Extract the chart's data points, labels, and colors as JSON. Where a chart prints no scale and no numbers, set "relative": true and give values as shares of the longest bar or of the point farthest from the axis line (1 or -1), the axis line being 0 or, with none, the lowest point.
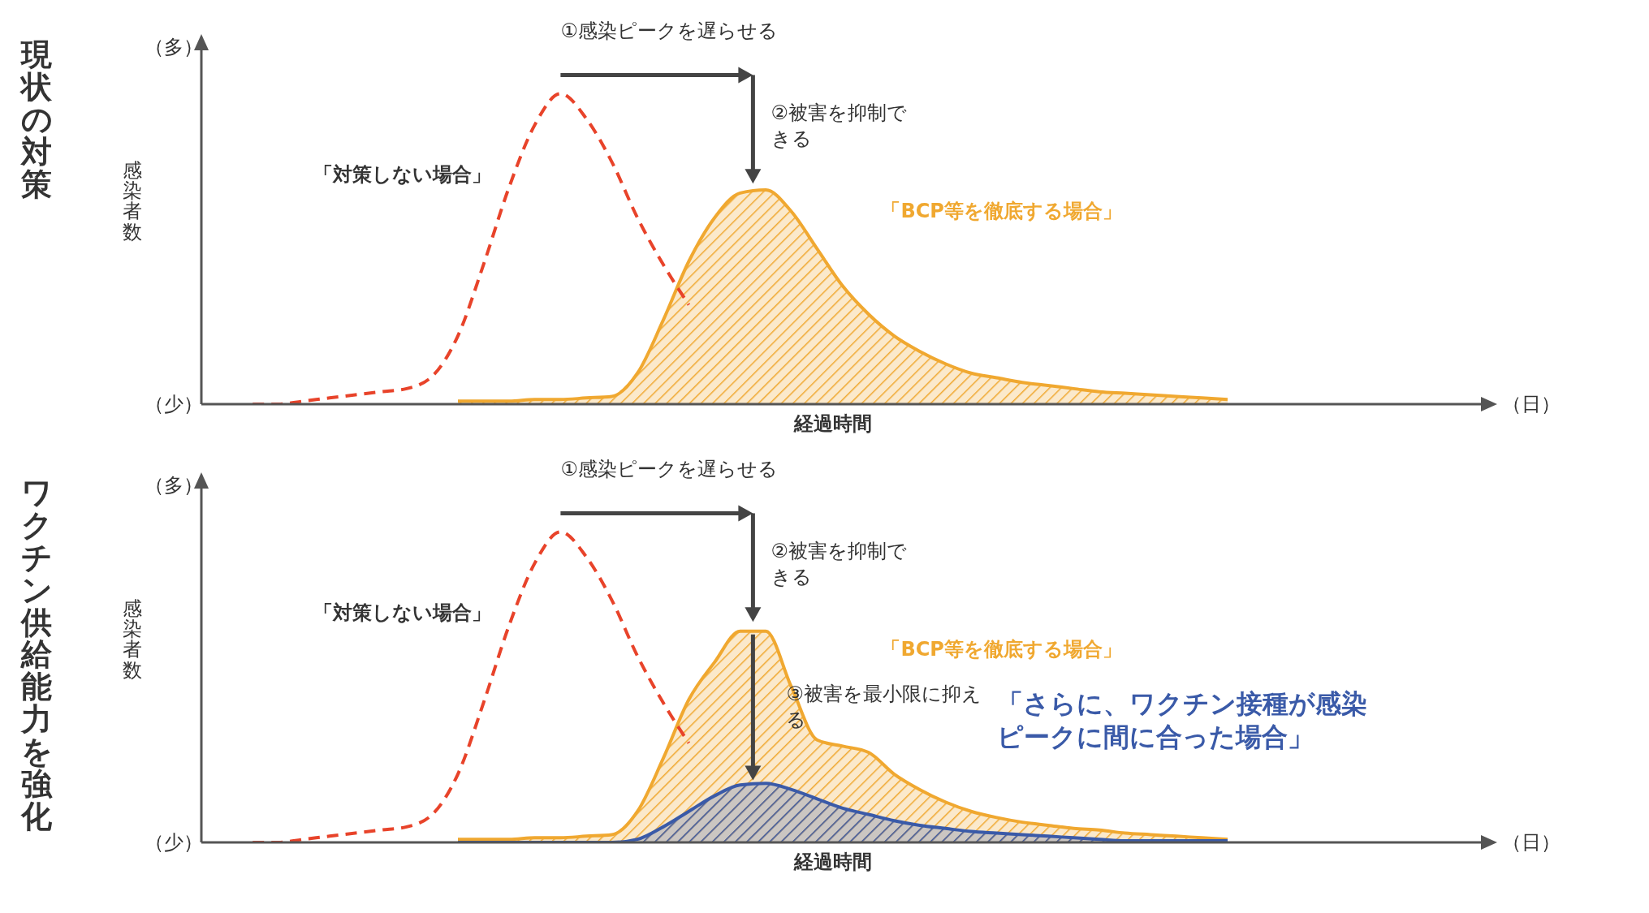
{
  "chart_data": [
    {
      "type": "area",
      "title": "現状の対策",
      "ylabel": "感染者数",
      "xlabel": "経過時間",
      "relative": true,
      "legend": false,
      "categories": [
        null,
        null,
        null,
        null,
        null,
        null,
        null,
        null,
        null,
        null,
        null,
        null,
        null,
        null,
        null,
        null,
        null,
        null,
        null,
        null,
        null,
        null,
        null,
        null,
        null,
        null,
        null,
        null,
        null,
        null,
        null,
        null,
        null,
        null,
        null,
        null,
        null,
        null,
        null,
        null,
        null,
        null,
        null,
        null,
        null,
        null,
        null,
        null,
        null,
        null,
        null
      ],
      "annotations": [
        "（多）",
        "（少）",
        "（日）",
        "①感染ピークを遅らせる",
        "②被害を抑制できる"
      ],
      "series": [
        {
          "name": "「対策しない場合」",
          "type": "line",
          "line_style": "dashed",
          "color": "#e8432a",
          "values": [
            null,
            null,
            0,
            0,
            0.01,
            0.02,
            0.03,
            0.04,
            0.05,
            0.09,
            0.22,
            0.45,
            0.7,
            0.9,
            1.0,
            0.92,
            0.78,
            0.6,
            0.45,
            0.32,
            null,
            null,
            null,
            null,
            null,
            null,
            null,
            null,
            null,
            null,
            null,
            null,
            null,
            null,
            null,
            null,
            null,
            null,
            null,
            null,
            null,
            null,
            null,
            null,
            null,
            null,
            null,
            null,
            null,
            null,
            null
          ]
        },
        {
          "name": "「BCP等を徹底する場合」",
          "color": "#f0a830",
          "values": [
            null,
            null,
            null,
            null,
            null,
            null,
            null,
            null,
            null,
            null,
            0.01,
            0.01,
            0.01,
            0.015,
            0.015,
            0.02,
            0.025,
            0.1,
            0.27,
            0.46,
            0.6,
            0.68,
            0.69,
            0.62,
            0.5,
            0.38,
            0.29,
            0.22,
            0.17,
            0.13,
            0.1,
            0.085,
            0.07,
            0.06,
            0.05,
            0.04,
            0.035,
            0.03,
            0.025,
            0.02,
            0.015,
            null,
            null,
            null,
            null,
            null,
            null,
            null,
            null,
            null,
            null
          ]
        }
      ]
    },
    {
      "type": "area",
      "title": "ワクチン供給能力を強化",
      "ylabel": "感染者数",
      "xlabel": "経過時間",
      "relative": true,
      "legend": false,
      "categories": [
        null,
        null,
        null,
        null,
        null,
        null,
        null,
        null,
        null,
        null,
        null,
        null,
        null,
        null,
        null,
        null,
        null,
        null,
        null,
        null,
        null,
        null,
        null,
        null,
        null,
        null,
        null,
        null,
        null,
        null,
        null,
        null,
        null,
        null,
        null,
        null,
        null,
        null,
        null,
        null,
        null,
        null,
        null,
        null,
        null,
        null,
        null,
        null,
        null,
        null,
        null
      ],
      "annotations": [
        "（多）",
        "（少）",
        "（日）",
        "①感染ピークを遅らせる",
        "②被害を抑制できる",
        "③被害を最小限に抑える"
      ],
      "series": [
        {
          "name": "「対策しない場合」",
          "type": "line",
          "line_style": "dashed",
          "color": "#e8432a",
          "values": [
            null,
            null,
            0,
            0,
            0.01,
            0.02,
            0.03,
            0.04,
            0.05,
            0.09,
            0.22,
            0.45,
            0.7,
            0.9,
            1.0,
            0.92,
            0.78,
            0.6,
            0.45,
            0.32,
            null,
            null,
            null,
            null,
            null,
            null,
            null,
            null,
            null,
            null,
            null,
            null,
            null,
            null,
            null,
            null,
            null,
            null,
            null,
            null,
            null,
            null,
            null,
            null,
            null,
            null,
            null,
            null,
            null,
            null,
            null
          ]
        },
        {
          "name": "「BCP等を徹底する場合」",
          "color": "#f0a830",
          "values": [
            null,
            null,
            null,
            null,
            null,
            null,
            null,
            null,
            null,
            null,
            0.01,
            0.01,
            0.01,
            0.015,
            0.015,
            0.02,
            0.025,
            0.1,
            0.27,
            0.46,
            0.58,
            0.68,
            0.68,
            0.5,
            0.33,
            0.31,
            0.29,
            0.22,
            0.17,
            0.13,
            0.1,
            0.08,
            0.065,
            0.055,
            0.045,
            0.04,
            0.03,
            0.025,
            0.02,
            0.015,
            0.01,
            null,
            null,
            null,
            null,
            null,
            null,
            null,
            null,
            null,
            null
          ]
        },
        {
          "name": "「さらに、ワクチン接種が感染ピークに間に合った場合」",
          "color": "#3a5aa8",
          "values": [
            null,
            null,
            null,
            null,
            null,
            null,
            null,
            null,
            null,
            null,
            0,
            0,
            0,
            0,
            0,
            0,
            0,
            0.01,
            0.05,
            0.1,
            0.15,
            0.185,
            0.19,
            0.17,
            0.14,
            0.11,
            0.09,
            0.07,
            0.055,
            0.045,
            0.035,
            0.03,
            0.025,
            0.02,
            0.015,
            0.01,
            0.005,
            0.005,
            0.005,
            0.005,
            0.005,
            null,
            null,
            null,
            null,
            null,
            null,
            null,
            null,
            null,
            null
          ]
        }
      ]
    }
  ]
}
